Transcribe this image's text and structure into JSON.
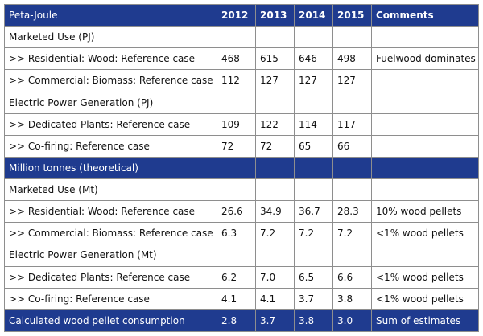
{
  "columns": [
    "Peta-Joule",
    "2012",
    "2013",
    "2014",
    "2015",
    "Comments"
  ],
  "rows": [
    {
      "type": "section",
      "cells": [
        "Marketed Use (PJ)",
        "",
        "",
        "",
        "",
        ""
      ]
    },
    {
      "type": "data",
      "cells": [
        ">> Residential: Wood: Reference case",
        "468",
        "615",
        "646",
        "498",
        "Fuelwood dominates"
      ]
    },
    {
      "type": "data",
      "cells": [
        ">> Commercial: Biomass: Reference case",
        "112",
        "127",
        "127",
        "127",
        ""
      ]
    },
    {
      "type": "section",
      "cells": [
        "Electric Power Generation (PJ)",
        "",
        "",
        "",
        "",
        ""
      ]
    },
    {
      "type": "data",
      "cells": [
        ">> Dedicated Plants: Reference case",
        "109",
        "122",
        "114",
        "117",
        ""
      ]
    },
    {
      "type": "data",
      "cells": [
        ">> Co-firing: Reference case",
        "72",
        "72",
        "65",
        "66",
        ""
      ]
    },
    {
      "type": "header",
      "cells": [
        "Million tonnes (theoretical)",
        "",
        "",
        "",
        "",
        ""
      ]
    },
    {
      "type": "section",
      "cells": [
        "Marketed Use (Mt)",
        "",
        "",
        "",
        "",
        ""
      ]
    },
    {
      "type": "data",
      "cells": [
        ">> Residential: Wood: Reference case",
        "26.6",
        "34.9",
        "36.7",
        "28.3",
        "10% wood pellets"
      ]
    },
    {
      "type": "data",
      "cells": [
        ">> Commercial: Biomass: Reference case",
        "6.3",
        "7.2",
        "7.2",
        "7.2",
        "<1% wood pellets"
      ]
    },
    {
      "type": "section",
      "cells": [
        "Electric Power Generation (Mt)",
        "",
        "",
        "",
        "",
        ""
      ]
    },
    {
      "type": "data",
      "cells": [
        ">> Dedicated Plants: Reference case",
        "6.2",
        "7.0",
        "6.5",
        "6.6",
        "<1% wood pellets"
      ]
    },
    {
      "type": "data",
      "cells": [
        ">> Co-firing: Reference case",
        "4.1",
        "4.1",
        "3.7",
        "3.8",
        "<1% wood pellets"
      ]
    },
    {
      "type": "header",
      "cells": [
        "Calculated wood pellet consumption",
        "2.8",
        "3.7",
        "3.8",
        "3.0",
        "Sum of estimates"
      ]
    }
  ]
}
